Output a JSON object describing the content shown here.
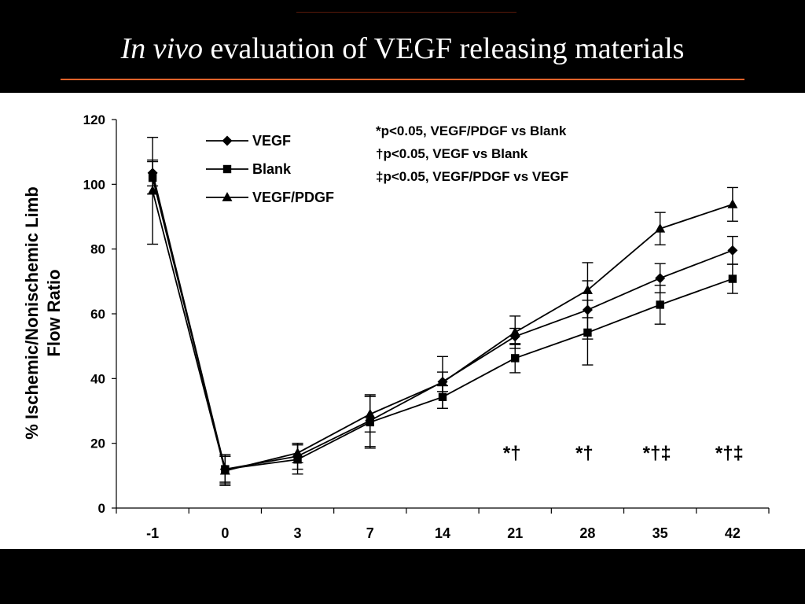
{
  "slide": {
    "title_italic": "In vivo",
    "title_rest": " evaluation of VEGF releasing materials"
  },
  "colors": {
    "background": "#000000",
    "accent_rule": "#e0622a",
    "chart_bg": "#ffffff",
    "ink": "#000000"
  },
  "chart_data": {
    "type": "line",
    "title": "",
    "xlabel": "",
    "ylabel": "% Ischemic/Nonischemic Limb Flow Ratio",
    "ylabel_lines": [
      "% Ischemic/Nonischemic Limb",
      "Flow Ratio"
    ],
    "categories": [
      "-1",
      "0",
      "3",
      "7",
      "14",
      "21",
      "28",
      "35",
      "42"
    ],
    "ylim": [
      0,
      120
    ],
    "yticks": [
      0,
      20,
      40,
      60,
      80,
      100,
      120
    ],
    "grid": false,
    "legend_position": "top-left",
    "series": [
      {
        "name": "VEGF",
        "marker": "diamond",
        "values": [
          103.5,
          12,
          16,
          27,
          39,
          53,
          61.2,
          71,
          79.6
        ],
        "errors": [
          4,
          4.5,
          4,
          8,
          3,
          2.5,
          9,
          4.5,
          4.3
        ]
      },
      {
        "name": "Blank",
        "marker": "square",
        "values": [
          102,
          12,
          15,
          26.5,
          34.3,
          46.3,
          54.2,
          62.8,
          70.8
        ],
        "errors": [
          5,
          4,
          4.5,
          8,
          3.5,
          4.5,
          10,
          6,
          4.5
        ]
      },
      {
        "name": "VEGF/PDGF",
        "marker": "triangle",
        "values": [
          98,
          11.5,
          17,
          29,
          38.8,
          54.3,
          67.3,
          86.3,
          93.8
        ],
        "errors": [
          16.5,
          4.5,
          3,
          5.5,
          8,
          5,
          8.5,
          5,
          5.2
        ]
      }
    ],
    "annotations": [
      "*p<0.05, VEGF/PDGF vs Blank",
      "†p<0.05, VEGF vs Blank",
      "‡p<0.05, VEGF/PDGF vs VEGF"
    ],
    "significance_marks": [
      {
        "category": "21",
        "text": "*†"
      },
      {
        "category": "28",
        "text": "*†"
      },
      {
        "category": "35",
        "text": "*†‡"
      },
      {
        "category": "42",
        "text": "*†‡"
      }
    ]
  }
}
